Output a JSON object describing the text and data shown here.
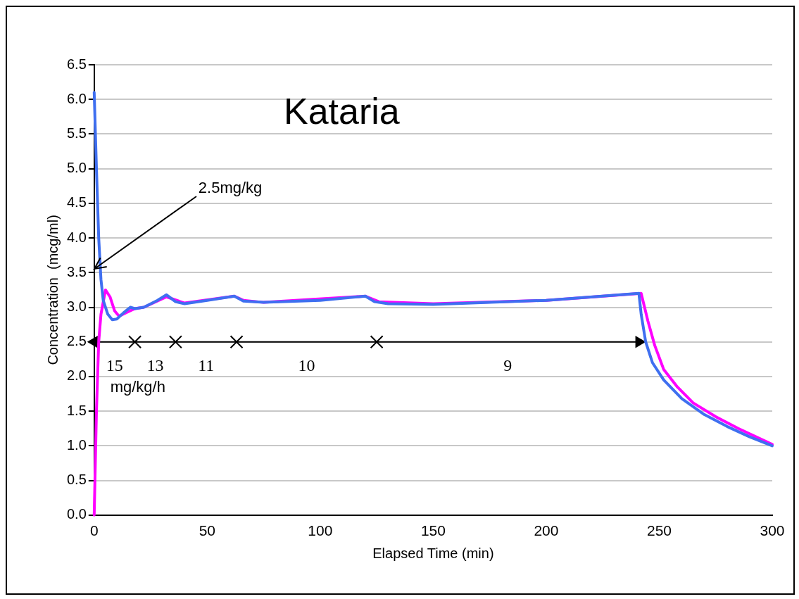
{
  "chart_data": {
    "type": "line",
    "title": "Kataria",
    "xlabel": "Elapsed Time (min)",
    "ylabel": "Concentration  (mcg/ml)",
    "series": [
      {
        "color": "#3f6ff0",
        "x": [
          0,
          1,
          2,
          3,
          4,
          6,
          8,
          10,
          13,
          16,
          18,
          22,
          28,
          32,
          36,
          40,
          50,
          62,
          66,
          75,
          100,
          120,
          124,
          130,
          150,
          200,
          241,
          242,
          244,
          247,
          252,
          260,
          270,
          280,
          290,
          300
        ],
        "values": [
          6.1,
          5.0,
          4.0,
          3.4,
          3.1,
          2.9,
          2.82,
          2.83,
          2.92,
          3.0,
          2.98,
          3.0,
          3.1,
          3.18,
          3.08,
          3.05,
          3.1,
          3.16,
          3.09,
          3.07,
          3.1,
          3.16,
          3.08,
          3.05,
          3.04,
          3.1,
          3.2,
          2.9,
          2.5,
          2.2,
          1.95,
          1.68,
          1.45,
          1.28,
          1.13,
          1.0
        ]
      },
      {
        "color": "#ff00ff",
        "x": [
          0,
          1,
          2,
          3,
          5,
          7,
          9,
          11,
          14,
          18,
          22,
          32,
          40,
          62,
          66,
          75,
          120,
          126,
          150,
          200,
          242,
          245,
          248,
          252,
          258,
          265,
          275,
          285,
          300
        ],
        "values": [
          0,
          1.5,
          2.5,
          2.9,
          3.25,
          3.15,
          2.95,
          2.87,
          2.92,
          2.98,
          3.0,
          3.15,
          3.06,
          3.16,
          3.1,
          3.07,
          3.16,
          3.08,
          3.05,
          3.1,
          3.2,
          2.8,
          2.45,
          2.1,
          1.85,
          1.62,
          1.42,
          1.25,
          1.02
        ]
      },
      {
        "color": "#000000",
        "marker": "triangle",
        "x": [
          0,
          241
        ],
        "values": [
          2.5,
          2.5
        ]
      },
      {
        "type": "scatter",
        "color": "#000000",
        "marker": "cross",
        "x": [
          18,
          36,
          63,
          125
        ],
        "values": [
          2.5,
          2.5,
          2.5,
          2.5
        ]
      }
    ],
    "xlim": [
      0,
      300
    ],
    "xticks": [
      0,
      50,
      100,
      150,
      200,
      250,
      300
    ],
    "ylim": [
      0,
      6.5
    ],
    "yticks": [
      {
        "value": 0,
        "label": "0.0"
      },
      0.5,
      {
        "value": 1,
        "label": "1.0"
      },
      1.5,
      {
        "value": 2,
        "label": "2.0"
      },
      2.5,
      {
        "value": 3,
        "label": "3.0"
      },
      3.5,
      {
        "value": 4,
        "label": "4.0"
      },
      4.5,
      {
        "value": 5,
        "label": "5.0"
      },
      5.5,
      {
        "value": 6,
        "label": "6.0"
      },
      6.5
    ],
    "annotations": [
      "2.5mg/kg",
      "15",
      "13",
      "11",
      "10",
      "9",
      "mg/kg/h"
    ],
    "grid": "y",
    "legend": false,
    "marker": "none",
    "line_style": "solid"
  }
}
